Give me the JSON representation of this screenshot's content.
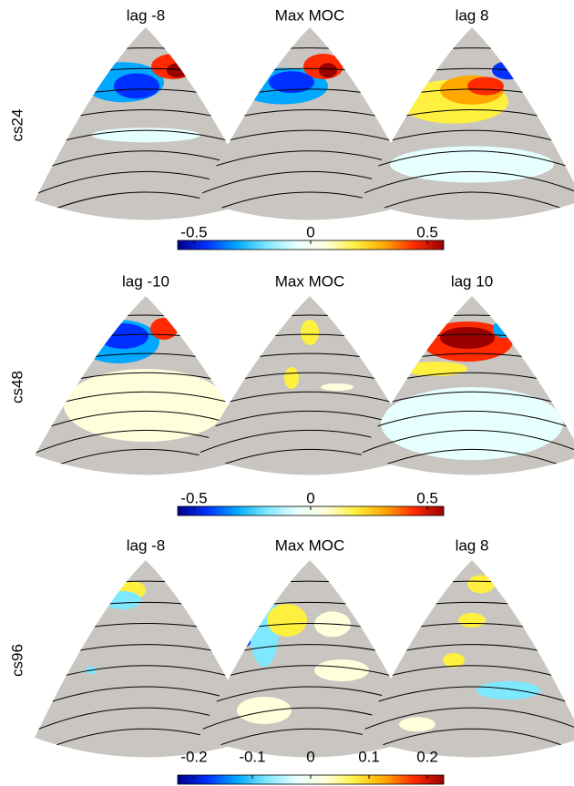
{
  "chart_data": [
    {
      "type": "map",
      "ylabel": "cs24",
      "titles": [
        "lag -8",
        "Max MOC",
        "lag 8"
      ],
      "colorbar": {
        "lim": [
          -0.57,
          0.57
        ],
        "ticks": [
          -0.5,
          0,
          0.5
        ]
      },
      "colormap": [
        "#00008b",
        "#0030ff",
        "#00a8ff",
        "#7ee8ff",
        "#e6ffff",
        "#ffffdc",
        "#fff040",
        "#ffa800",
        "#ff2a00",
        "#9a0000"
      ]
    },
    {
      "type": "map",
      "ylabel": "cs48",
      "titles": [
        "lag -10",
        "Max MOC",
        "lag 10"
      ],
      "colorbar": {
        "lim": [
          -0.57,
          0.57
        ],
        "ticks": [
          -0.5,
          0,
          0.5
        ]
      },
      "colormap": [
        "#00008b",
        "#0030ff",
        "#00a8ff",
        "#7ee8ff",
        "#e6ffff",
        "#ffffdc",
        "#fff040",
        "#ffa800",
        "#ff2a00",
        "#9a0000"
      ]
    },
    {
      "type": "map",
      "ylabel": "cs96",
      "titles": [
        "lag -8",
        "Max MOC",
        "lag 8"
      ],
      "colorbar": {
        "lim": [
          -0.228,
          0.228
        ],
        "ticks": [
          -0.2,
          -0.1,
          0,
          0.1,
          0.2
        ]
      },
      "colormap": [
        "#00008b",
        "#0030ff",
        "#00a8ff",
        "#7ee8ff",
        "#e6ffff",
        "#ffffdc",
        "#fff040",
        "#ffa800",
        "#ff2a00",
        "#9a0000"
      ]
    }
  ]
}
